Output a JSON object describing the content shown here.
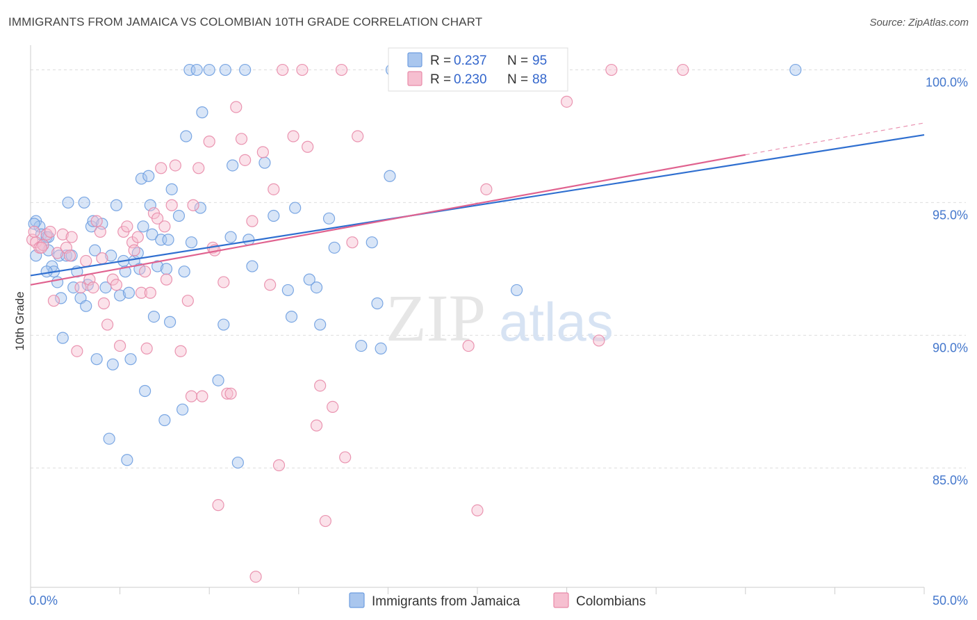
{
  "title": "IMMIGRANTS FROM JAMAICA VS COLOMBIAN 10TH GRADE CORRELATION CHART",
  "source": "Source: ZipAtlas.com",
  "watermark": {
    "zip": "ZIP",
    "atlas": "atlas"
  },
  "legend": {
    "rows": [
      {
        "r_label": "R = ",
        "r_value": "0.237",
        "n_label": "N = ",
        "n_value": "95",
        "color": "#6d9de0"
      },
      {
        "r_label": "R = ",
        "r_value": "0.230",
        "n_label": "N = ",
        "n_value": "88",
        "color": "#e88aa8"
      }
    ]
  },
  "bottom_legend": [
    {
      "label": "Immigrants from Jamaica",
      "color": "#6d9de0"
    },
    {
      "label": "Colombians",
      "color": "#e88aa8"
    }
  ],
  "colors": {
    "blue_fill": "#a9c6ee",
    "blue_stroke": "#6d9de0",
    "blue_line": "#2f6fd0",
    "pink_fill": "#f6bfd0",
    "pink_stroke": "#e88aa8",
    "pink_line": "#e0628f",
    "grid": "#dddddd",
    "tick_label": "#4477cc"
  },
  "chart_data": {
    "type": "scatter",
    "title": "IMMIGRANTS FROM JAMAICA VS COLOMBIAN 10TH GRADE CORRELATION CHART",
    "xlabel": "",
    "ylabel": "10th Grade",
    "xlim": [
      0,
      50
    ],
    "ylim": [
      80.5,
      100.8
    ],
    "x_tick_labels": [
      "0.0%",
      "50.0%"
    ],
    "y_ticks": [
      85,
      90,
      95,
      100
    ],
    "y_tick_labels": [
      "85.0%",
      "90.0%",
      "95.0%",
      "100.0%"
    ],
    "grid": "horizontal dashed",
    "legend_position": "top-center",
    "series": [
      {
        "name": "Immigrants from Jamaica",
        "R": 0.237,
        "N": 95,
        "trend": {
          "x": [
            0,
            50
          ],
          "y": [
            92.25,
            97.55
          ],
          "dashed_extension": false
        },
        "points": [
          [
            0.3,
            93.0
          ],
          [
            0.3,
            94.3
          ],
          [
            0.5,
            94.1
          ],
          [
            0.6,
            93.8
          ],
          [
            0.7,
            93.4
          ],
          [
            0.9,
            93.7
          ],
          [
            1.0,
            93.2
          ],
          [
            1.2,
            92.6
          ],
          [
            1.3,
            92.4
          ],
          [
            1.5,
            92.0
          ],
          [
            1.6,
            93.0
          ],
          [
            1.7,
            91.4
          ],
          [
            1.8,
            89.9
          ],
          [
            2.0,
            93.0
          ],
          [
            2.1,
            95.0
          ],
          [
            2.3,
            93.0
          ],
          [
            2.6,
            92.4
          ],
          [
            2.8,
            91.4
          ],
          [
            3.0,
            95.0
          ],
          [
            3.1,
            91.1
          ],
          [
            3.2,
            91.9
          ],
          [
            3.4,
            94.1
          ],
          [
            3.5,
            94.3
          ],
          [
            3.6,
            93.2
          ],
          [
            3.7,
            89.1
          ],
          [
            4.0,
            94.2
          ],
          [
            4.2,
            91.8
          ],
          [
            4.4,
            86.1
          ],
          [
            4.5,
            93.0
          ],
          [
            4.6,
            88.9
          ],
          [
            4.8,
            94.9
          ],
          [
            5.0,
            91.5
          ],
          [
            5.2,
            92.8
          ],
          [
            5.3,
            92.4
          ],
          [
            5.4,
            85.3
          ],
          [
            5.5,
            91.6
          ],
          [
            5.6,
            89.1
          ],
          [
            5.8,
            92.8
          ],
          [
            6.0,
            93.1
          ],
          [
            6.1,
            92.5
          ],
          [
            6.2,
            95.9
          ],
          [
            6.3,
            94.1
          ],
          [
            6.4,
            87.9
          ],
          [
            6.6,
            96.0
          ],
          [
            6.7,
            94.9
          ],
          [
            6.8,
            93.8
          ],
          [
            6.9,
            90.7
          ],
          [
            7.1,
            92.6
          ],
          [
            7.3,
            93.6
          ],
          [
            7.5,
            86.8
          ],
          [
            7.6,
            92.5
          ],
          [
            7.7,
            93.6
          ],
          [
            7.8,
            90.5
          ],
          [
            7.9,
            95.5
          ],
          [
            8.3,
            94.5
          ],
          [
            8.5,
            87.2
          ],
          [
            8.6,
            92.4
          ],
          [
            8.7,
            97.5
          ],
          [
            8.9,
            100.0
          ],
          [
            9.0,
            93.5
          ],
          [
            9.3,
            100.0
          ],
          [
            9.5,
            94.8
          ],
          [
            9.6,
            98.4
          ],
          [
            10.0,
            100.0
          ],
          [
            10.5,
            88.3
          ],
          [
            10.8,
            90.4
          ],
          [
            10.9,
            100.0
          ],
          [
            11.2,
            93.7
          ],
          [
            11.3,
            96.4
          ],
          [
            11.6,
            85.2
          ],
          [
            12.0,
            100.0
          ],
          [
            12.2,
            93.6
          ],
          [
            12.4,
            92.6
          ],
          [
            13.1,
            96.5
          ],
          [
            13.6,
            94.5
          ],
          [
            14.4,
            91.7
          ],
          [
            14.6,
            90.7
          ],
          [
            14.8,
            94.8
          ],
          [
            15.6,
            92.1
          ],
          [
            16.0,
            91.8
          ],
          [
            16.2,
            90.4
          ],
          [
            16.7,
            94.4
          ],
          [
            17.0,
            93.3
          ],
          [
            18.5,
            89.6
          ],
          [
            19.1,
            93.5
          ],
          [
            19.4,
            91.2
          ],
          [
            19.6,
            89.5
          ],
          [
            20.1,
            96.0
          ],
          [
            20.2,
            100.0
          ],
          [
            27.2,
            91.7
          ],
          [
            42.8,
            100.0
          ],
          [
            1.0,
            93.7
          ],
          [
            0.9,
            92.4
          ],
          [
            2.4,
            91.8
          ],
          [
            0.2,
            94.2
          ]
        ]
      },
      {
        "name": "Colombians",
        "R": 0.23,
        "N": 88,
        "trend": {
          "x": [
            0,
            40
          ],
          "y": [
            91.9,
            96.8
          ],
          "dashed_extension": true,
          "dashed_to": [
            50,
            98.0
          ]
        },
        "points": [
          [
            0.1,
            93.6
          ],
          [
            0.3,
            93.5
          ],
          [
            0.5,
            93.3
          ],
          [
            0.7,
            93.4
          ],
          [
            0.9,
            93.8
          ],
          [
            1.1,
            93.9
          ],
          [
            1.3,
            91.3
          ],
          [
            1.5,
            93.1
          ],
          [
            1.8,
            93.8
          ],
          [
            2.0,
            93.3
          ],
          [
            2.2,
            93.0
          ],
          [
            2.3,
            93.7
          ],
          [
            2.6,
            89.4
          ],
          [
            2.8,
            91.8
          ],
          [
            3.1,
            92.8
          ],
          [
            3.3,
            92.1
          ],
          [
            3.5,
            91.8
          ],
          [
            3.7,
            94.3
          ],
          [
            3.9,
            93.9
          ],
          [
            4.0,
            92.9
          ],
          [
            4.1,
            91.2
          ],
          [
            4.3,
            90.4
          ],
          [
            4.6,
            92.1
          ],
          [
            4.8,
            91.9
          ],
          [
            5.0,
            89.6
          ],
          [
            5.2,
            93.9
          ],
          [
            5.4,
            94.1
          ],
          [
            5.7,
            93.5
          ],
          [
            5.8,
            93.2
          ],
          [
            6.0,
            93.7
          ],
          [
            6.2,
            91.6
          ],
          [
            6.4,
            92.4
          ],
          [
            6.5,
            89.5
          ],
          [
            6.7,
            91.6
          ],
          [
            6.9,
            94.6
          ],
          [
            7.1,
            94.4
          ],
          [
            7.3,
            96.3
          ],
          [
            7.5,
            94.1
          ],
          [
            7.6,
            92.1
          ],
          [
            7.9,
            94.9
          ],
          [
            8.1,
            96.4
          ],
          [
            8.4,
            89.4
          ],
          [
            8.8,
            91.3
          ],
          [
            9.0,
            87.7
          ],
          [
            9.1,
            94.9
          ],
          [
            9.4,
            96.3
          ],
          [
            9.6,
            87.7
          ],
          [
            10.0,
            97.3
          ],
          [
            10.2,
            93.3
          ],
          [
            10.5,
            83.6
          ],
          [
            10.8,
            92.0
          ],
          [
            11.0,
            87.8
          ],
          [
            11.2,
            87.8
          ],
          [
            11.5,
            98.6
          ],
          [
            11.8,
            97.4
          ],
          [
            12.0,
            96.6
          ],
          [
            12.4,
            94.3
          ],
          [
            12.6,
            80.9
          ],
          [
            13.0,
            96.9
          ],
          [
            13.4,
            91.9
          ],
          [
            13.6,
            95.5
          ],
          [
            13.9,
            85.1
          ],
          [
            14.1,
            100.0
          ],
          [
            14.7,
            97.5
          ],
          [
            15.2,
            100.0
          ],
          [
            15.5,
            97.1
          ],
          [
            16.0,
            86.6
          ],
          [
            16.2,
            88.1
          ],
          [
            16.5,
            83.0
          ],
          [
            16.9,
            87.3
          ],
          [
            17.4,
            100.0
          ],
          [
            17.6,
            85.4
          ],
          [
            18.0,
            93.5
          ],
          [
            18.3,
            97.5
          ],
          [
            21.0,
            100.0
          ],
          [
            24.5,
            89.6
          ],
          [
            25.0,
            83.4
          ],
          [
            25.5,
            95.5
          ],
          [
            26.0,
            100.0
          ],
          [
            28.0,
            100.0
          ],
          [
            29.5,
            100.0
          ],
          [
            30.0,
            98.8
          ],
          [
            31.8,
            89.8
          ],
          [
            32.5,
            100.0
          ],
          [
            36.5,
            100.0
          ],
          [
            0.2,
            93.9
          ],
          [
            0.6,
            93.3
          ],
          [
            10.3,
            93.2
          ]
        ]
      }
    ]
  }
}
